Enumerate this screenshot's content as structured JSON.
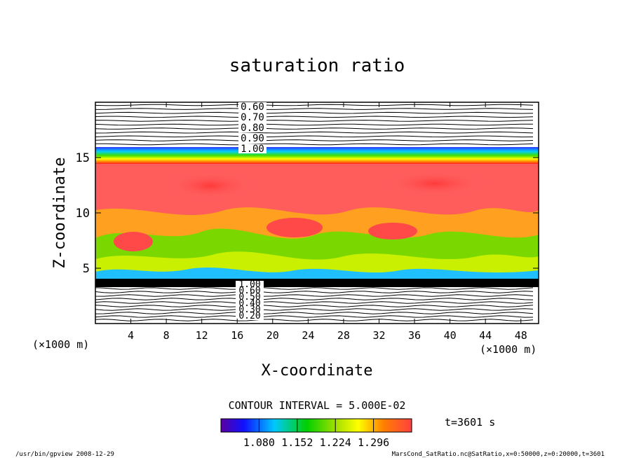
{
  "chart_data": {
    "type": "heatmap",
    "title": "saturation ratio",
    "xlabel": "X-coordinate",
    "ylabel": "Z-coordinate",
    "x_unit": "(×1000 m)",
    "y_unit": "(×1000 m)",
    "xlim": [
      0,
      50
    ],
    "ylim": [
      0,
      20
    ],
    "x_ticks": [
      4,
      8,
      12,
      16,
      20,
      24,
      28,
      32,
      36,
      40,
      44,
      48
    ],
    "y_ticks": [
      5,
      10,
      15
    ],
    "contour_labels_upper": [
      "0.60",
      "0.70",
      "0.80",
      "0.90",
      "1.00"
    ],
    "contour_labels_lower": [
      "1.00",
      "0.60",
      "0.50",
      "0.40",
      "0.30",
      "0.20"
    ],
    "contour_interval": "CONTOUR INTERVAL = 5.000E-02",
    "colorbar": {
      "min": 1.008,
      "max": 1.368,
      "ticks": [
        "1.080",
        "1.152",
        "1.224",
        "1.296"
      ],
      "colormap": "rainbow"
    },
    "colors": {
      "background": "#ffffff",
      "saturated_core": "#ff5a5a",
      "contour_line": "#000000"
    }
  },
  "time_label": "t=3601 s",
  "footer": {
    "left": "/usr/bin/gpview   2008-12-29",
    "right": "MarsCond_SatRatio.nc@SatRatio,x=0:50000,z=0:20000,t=3601"
  }
}
